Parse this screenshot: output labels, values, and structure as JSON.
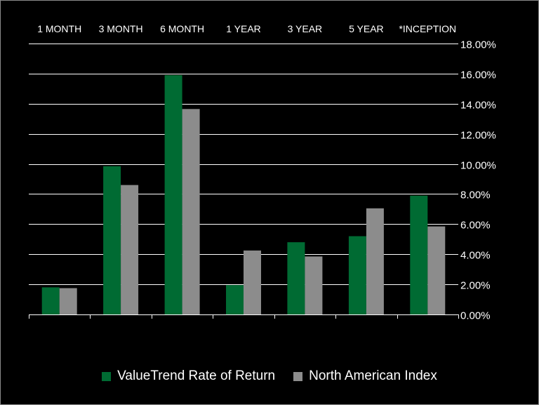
{
  "chart_data": {
    "type": "bar",
    "categories": [
      "1 MONTH",
      "3 MONTH",
      "6 MONTH",
      "1 YEAR",
      "3 YEAR",
      "5 YEAR",
      "*INCEPTION"
    ],
    "series": [
      {
        "name": "ValueTrend Rate of Return",
        "color": "#006b33",
        "values": [
          1.8,
          9.85,
          15.9,
          1.95,
          4.8,
          5.2,
          7.9
        ]
      },
      {
        "name": "North American Index",
        "color": "#8c8c8c",
        "values": [
          1.75,
          8.6,
          13.65,
          4.25,
          3.85,
          7.05,
          5.85
        ]
      }
    ],
    "ylim": [
      0,
      18
    ],
    "yticks": [
      "0.00%",
      "2.00%",
      "4.00%",
      "6.00%",
      "8.00%",
      "10.00%",
      "12.00%",
      "14.00%",
      "16.00%",
      "18.00%"
    ],
    "ytick_values": [
      0,
      2,
      4,
      6,
      8,
      10,
      12,
      14,
      16,
      18
    ],
    "y_axis_side": "right",
    "category_labels_position": "top",
    "grid": true,
    "legend_position": "bottom",
    "background": "#000000",
    "gridline_color": "#ffffff"
  }
}
